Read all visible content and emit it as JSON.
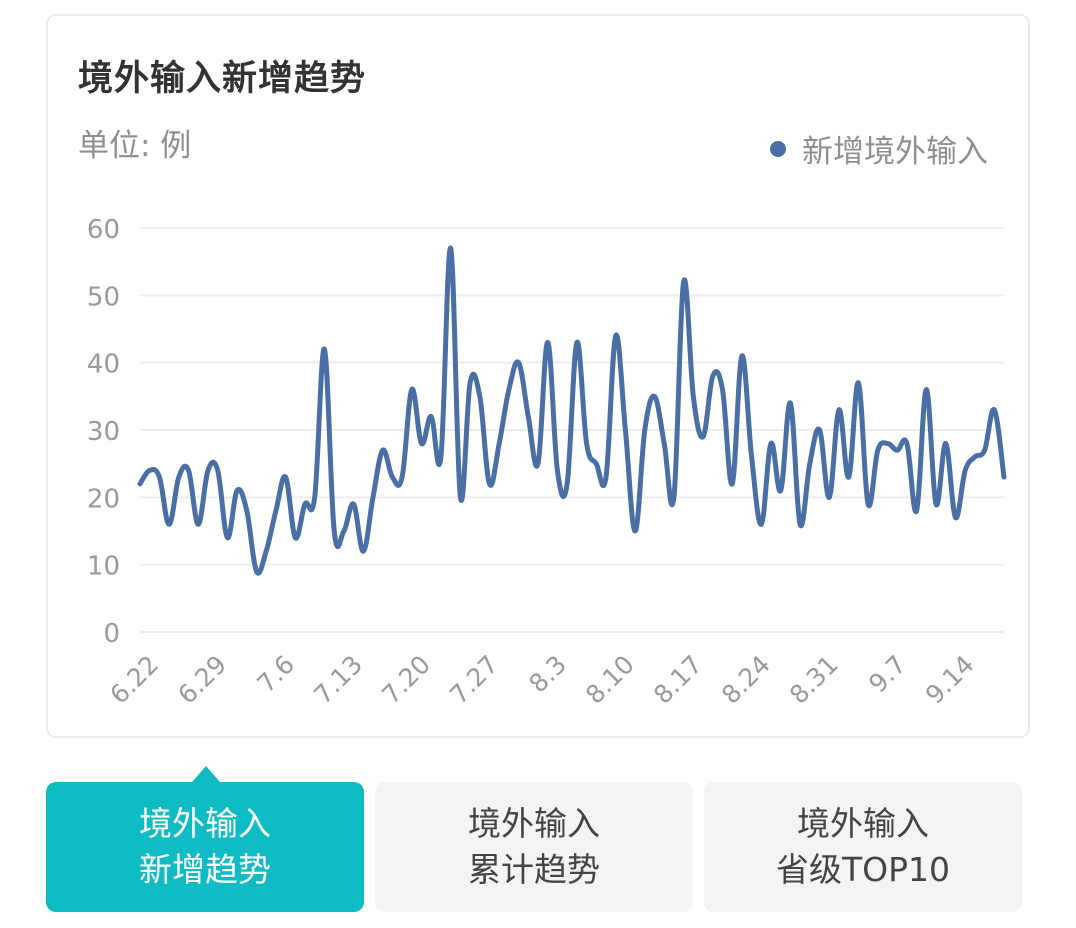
{
  "colors": {
    "series": "#4a6fa5",
    "active_tab": "#0fbcc4",
    "inactive_tab": "#f3f4f6",
    "grid": "#eeeeee",
    "axis_text": "#9a9a9a"
  },
  "card": {
    "title": "境外输入新增趋势",
    "unit": "单位: 例"
  },
  "chart_data": {
    "type": "line",
    "title": "境外输入新增趋势",
    "ylabel": "单位: 例",
    "xlabel": "",
    "ylim": [
      0,
      60
    ],
    "yticks": [
      0,
      10,
      20,
      30,
      40,
      50,
      60
    ],
    "x_tick_labels": [
      "6.22",
      "6.29",
      "7.6",
      "7.13",
      "7.20",
      "7.27",
      "8.3",
      "8.10",
      "8.17",
      "8.24",
      "8.31",
      "9.7",
      "9.14"
    ],
    "grid": true,
    "legend_position": "top-right",
    "series": [
      {
        "name": "新增境外输入",
        "values": [
          22,
          24,
          23,
          16,
          23,
          24,
          16,
          24,
          24,
          14,
          21,
          18,
          9,
          12,
          18,
          23,
          14,
          19,
          20,
          42,
          15,
          15,
          19,
          12,
          20,
          27,
          23,
          23,
          36,
          28,
          32,
          26,
          57,
          20,
          37,
          35,
          22,
          28,
          36,
          40,
          32,
          25,
          43,
          24,
          22,
          43,
          28,
          25,
          23,
          44,
          30,
          15,
          30,
          35,
          28,
          20,
          52,
          35,
          29,
          38,
          36,
          22,
          41,
          26,
          16,
          28,
          21,
          34,
          16,
          25,
          30,
          20,
          33,
          23,
          37,
          19,
          27,
          28,
          27,
          28,
          18,
          36,
          19,
          28,
          17,
          24,
          26,
          27,
          33,
          23
        ]
      }
    ]
  },
  "tabs": [
    {
      "line1": "境外输入",
      "line2": "新增趋势"
    },
    {
      "line1": "境外输入",
      "line2": "累计趋势"
    },
    {
      "line1": "境外输入",
      "line2": "省级TOP10"
    }
  ]
}
